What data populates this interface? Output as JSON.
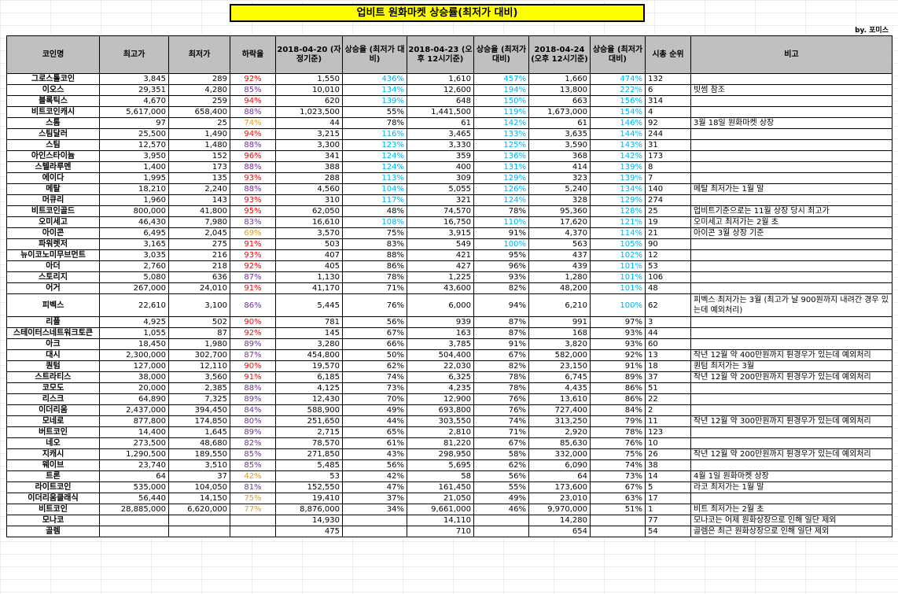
{
  "title": "업비트 원화마켓 상승률(최저가 대비)",
  "byline": "by. 포미스",
  "colors": {
    "red": "#ff0000",
    "purple": "#7030a0",
    "orange": "#e59a1a",
    "cyan": "#00b0f0",
    "black": "#000000"
  },
  "columns": [
    "코인명",
    "최고가",
    "최저가",
    "하락율",
    "2018-04-20 (자정기준)",
    "상승율 (최저가 대비)",
    "2018-04-23 (오후 12시기준)",
    "상승율 (최저가 대비)",
    "2018-04-24 (오후 12시기준)",
    "상승율 (최저가 대비)",
    "시총 순위",
    "비고"
  ],
  "rows": [
    {
      "name": "그로스톨코인",
      "high": "3,845",
      "low": "289",
      "drop": "92%",
      "dc": "red",
      "p0420": "1,550",
      "r0420": "436%",
      "c0420": "cyan",
      "p0423": "1,610",
      "r0423": "457%",
      "c0423": "cyan",
      "p0424": "1,660",
      "r0424": "474%",
      "c0424": "cyan",
      "rank": "132",
      "note": ""
    },
    {
      "name": "이오스",
      "high": "29,351",
      "low": "4,280",
      "drop": "85%",
      "dc": "purple",
      "p0420": "10,010",
      "r0420": "134%",
      "c0420": "cyan",
      "p0423": "12,600",
      "r0423": "194%",
      "c0423": "cyan",
      "p0424": "13,800",
      "r0424": "222%",
      "c0424": "cyan",
      "rank": "6",
      "note": "빗썸 참조"
    },
    {
      "name": "블록틱스",
      "high": "4,670",
      "low": "259",
      "drop": "94%",
      "dc": "red",
      "p0420": "620",
      "r0420": "139%",
      "c0420": "cyan",
      "p0423": "648",
      "r0423": "150%",
      "c0423": "cyan",
      "p0424": "663",
      "r0424": "156%",
      "c0424": "cyan",
      "rank": "314",
      "note": ""
    },
    {
      "name": "비트코인캐시",
      "high": "5,617,000",
      "low": "658,400",
      "drop": "88%",
      "dc": "purple",
      "p0420": "1,023,500",
      "r0420": "55%",
      "c0420": "black",
      "p0423": "1,441,500",
      "r0423": "119%",
      "c0423": "cyan",
      "p0424": "1,673,000",
      "r0424": "154%",
      "c0424": "cyan",
      "rank": "4",
      "note": ""
    },
    {
      "name": "스톰",
      "high": "97",
      "low": "25",
      "drop": "74%",
      "dc": "orange",
      "p0420": "44",
      "r0420": "78%",
      "c0420": "black",
      "p0423": "61",
      "r0423": "142%",
      "c0423": "cyan",
      "p0424": "61",
      "r0424": "146%",
      "c0424": "cyan",
      "rank": "92",
      "note": "3월 18일 원화마켓 상장"
    },
    {
      "name": "스팀달러",
      "high": "25,500",
      "low": "1,490",
      "drop": "94%",
      "dc": "red",
      "p0420": "3,215",
      "r0420": "116%",
      "c0420": "cyan",
      "p0423": "3,465",
      "r0423": "133%",
      "c0423": "cyan",
      "p0424": "3,635",
      "r0424": "144%",
      "c0424": "cyan",
      "rank": "244",
      "note": ""
    },
    {
      "name": "스팀",
      "high": "12,570",
      "low": "1,480",
      "drop": "88%",
      "dc": "purple",
      "p0420": "3,300",
      "r0420": "123%",
      "c0420": "cyan",
      "p0423": "3,330",
      "r0423": "125%",
      "c0423": "cyan",
      "p0424": "3,590",
      "r0424": "143%",
      "c0424": "cyan",
      "rank": "31",
      "note": ""
    },
    {
      "name": "아인스타이늄",
      "high": "3,950",
      "low": "152",
      "drop": "96%",
      "dc": "red",
      "p0420": "341",
      "r0420": "124%",
      "c0420": "cyan",
      "p0423": "359",
      "r0423": "136%",
      "c0423": "cyan",
      "p0424": "368",
      "r0424": "142%",
      "c0424": "cyan",
      "rank": "173",
      "note": ""
    },
    {
      "name": "스텔라루멘",
      "high": "1,400",
      "low": "173",
      "drop": "88%",
      "dc": "purple",
      "p0420": "388",
      "r0420": "124%",
      "c0420": "cyan",
      "p0423": "400",
      "r0423": "131%",
      "c0423": "cyan",
      "p0424": "414",
      "r0424": "139%",
      "c0424": "cyan",
      "rank": "8",
      "note": ""
    },
    {
      "name": "에이다",
      "high": "1,995",
      "low": "135",
      "drop": "93%",
      "dc": "red",
      "p0420": "288",
      "r0420": "113%",
      "c0420": "cyan",
      "p0423": "309",
      "r0423": "129%",
      "c0423": "cyan",
      "p0424": "323",
      "r0424": "139%",
      "c0424": "cyan",
      "rank": "7",
      "note": ""
    },
    {
      "name": "메탈",
      "high": "18,210",
      "low": "2,240",
      "drop": "88%",
      "dc": "purple",
      "p0420": "4,560",
      "r0420": "104%",
      "c0420": "cyan",
      "p0423": "5,055",
      "r0423": "126%",
      "c0423": "cyan",
      "p0424": "5,240",
      "r0424": "134%",
      "c0424": "cyan",
      "rank": "140",
      "note": "메탈 최저가는 1월 말"
    },
    {
      "name": "머큐리",
      "high": "1,960",
      "low": "143",
      "drop": "93%",
      "dc": "red",
      "p0420": "310",
      "r0420": "117%",
      "c0420": "cyan",
      "p0423": "321",
      "r0423": "124%",
      "c0423": "cyan",
      "p0424": "328",
      "r0424": "129%",
      "c0424": "cyan",
      "rank": "274",
      "note": ""
    },
    {
      "name": "비트코인골드",
      "high": "800,000",
      "low": "41,800",
      "drop": "95%",
      "dc": "red",
      "p0420": "62,050",
      "r0420": "48%",
      "c0420": "black",
      "p0423": "74,570",
      "r0423": "78%",
      "c0423": "black",
      "p0424": "95,360",
      "r0424": "128%",
      "c0424": "cyan",
      "rank": "25",
      "note": "업비트기준으로는 11월 상장 당시 최고가"
    },
    {
      "name": "오미세고",
      "high": "46,430",
      "low": "7,980",
      "drop": "83%",
      "dc": "purple",
      "p0420": "16,610",
      "r0420": "108%",
      "c0420": "cyan",
      "p0423": "16,750",
      "r0423": "110%",
      "c0423": "cyan",
      "p0424": "17,620",
      "r0424": "121%",
      "c0424": "cyan",
      "rank": "19",
      "note": "오미세고 최저가는 2월 초"
    },
    {
      "name": "아이콘",
      "high": "6,495",
      "low": "2,045",
      "drop": "69%",
      "dc": "orange",
      "p0420": "3,570",
      "r0420": "75%",
      "c0420": "black",
      "p0423": "3,915",
      "r0423": "91%",
      "c0423": "black",
      "p0424": "4,370",
      "r0424": "114%",
      "c0424": "cyan",
      "rank": "21",
      "note": "아이콘 3월 상장 기준"
    },
    {
      "name": "파워렛저",
      "high": "3,165",
      "low": "275",
      "drop": "91%",
      "dc": "red",
      "p0420": "503",
      "r0420": "83%",
      "c0420": "black",
      "p0423": "549",
      "r0423": "100%",
      "c0423": "cyan",
      "p0424": "563",
      "r0424": "105%",
      "c0424": "cyan",
      "rank": "90",
      "note": ""
    },
    {
      "name": "뉴이코노미무브먼트",
      "high": "3,035",
      "low": "216",
      "drop": "93%",
      "dc": "red",
      "p0420": "407",
      "r0420": "88%",
      "c0420": "black",
      "p0423": "421",
      "r0423": "95%",
      "c0423": "black",
      "p0424": "437",
      "r0424": "102%",
      "c0424": "cyan",
      "rank": "12",
      "note": ""
    },
    {
      "name": "아더",
      "high": "2,760",
      "low": "218",
      "drop": "92%",
      "dc": "red",
      "p0420": "405",
      "r0420": "86%",
      "c0420": "black",
      "p0423": "427",
      "r0423": "96%",
      "c0423": "black",
      "p0424": "439",
      "r0424": "101%",
      "c0424": "cyan",
      "rank": "53",
      "note": ""
    },
    {
      "name": "스토리지",
      "high": "5,080",
      "low": "636",
      "drop": "87%",
      "dc": "purple",
      "p0420": "1,130",
      "r0420": "78%",
      "c0420": "black",
      "p0423": "1,225",
      "r0423": "93%",
      "c0423": "black",
      "p0424": "1,280",
      "r0424": "101%",
      "c0424": "cyan",
      "rank": "106",
      "note": ""
    },
    {
      "name": "어거",
      "high": "267,000",
      "low": "24,010",
      "drop": "91%",
      "dc": "red",
      "p0420": "41,170",
      "r0420": "71%",
      "c0420": "black",
      "p0423": "43,600",
      "r0423": "82%",
      "c0423": "black",
      "p0424": "48,200",
      "r0424": "101%",
      "c0424": "cyan",
      "rank": "48",
      "note": ""
    },
    {
      "name": "피벡스",
      "high": "22,610",
      "low": "3,100",
      "drop": "86%",
      "dc": "purple",
      "p0420": "5,445",
      "r0420": "76%",
      "c0420": "black",
      "p0423": "6,000",
      "r0423": "94%",
      "c0423": "black",
      "p0424": "6,210",
      "r0424": "100%",
      "c0424": "cyan",
      "rank": "62",
      "note": "피벡스 최저가는 3월 (최고가 날 900원까지 내려간 경우 있는데 예외처리)",
      "tall": true
    },
    {
      "name": "리플",
      "high": "4,925",
      "low": "502",
      "drop": "90%",
      "dc": "red",
      "p0420": "781",
      "r0420": "56%",
      "c0420": "black",
      "p0423": "939",
      "r0423": "87%",
      "c0423": "black",
      "p0424": "991",
      "r0424": "97%",
      "c0424": "black",
      "rank": "3",
      "note": ""
    },
    {
      "name": "스테이터스네트워크토큰",
      "high": "1,055",
      "low": "87",
      "drop": "92%",
      "dc": "red",
      "p0420": "145",
      "r0420": "67%",
      "c0420": "black",
      "p0423": "163",
      "r0423": "87%",
      "c0423": "black",
      "p0424": "168",
      "r0424": "93%",
      "c0424": "black",
      "rank": "44",
      "note": ""
    },
    {
      "name": "아크",
      "high": "18,450",
      "low": "1,980",
      "drop": "89%",
      "dc": "purple",
      "p0420": "3,280",
      "r0420": "66%",
      "c0420": "black",
      "p0423": "3,785",
      "r0423": "91%",
      "c0423": "black",
      "p0424": "3,820",
      "r0424": "93%",
      "c0424": "black",
      "rank": "60",
      "note": ""
    },
    {
      "name": "대시",
      "high": "2,300,000",
      "low": "302,700",
      "drop": "87%",
      "dc": "purple",
      "p0420": "454,800",
      "r0420": "50%",
      "c0420": "black",
      "p0423": "504,400",
      "r0423": "67%",
      "c0423": "black",
      "p0424": "582,000",
      "r0424": "92%",
      "c0424": "black",
      "rank": "13",
      "note": "작년 12월 약 400만원까지 튄경우가 있는데 예외처리"
    },
    {
      "name": "퀀텀",
      "high": "127,000",
      "low": "12,110",
      "drop": "90%",
      "dc": "red",
      "p0420": "19,570",
      "r0420": "62%",
      "c0420": "black",
      "p0423": "22,030",
      "r0423": "82%",
      "c0423": "black",
      "p0424": "23,150",
      "r0424": "91%",
      "c0424": "black",
      "rank": "18",
      "note": "퀀텀 최저가는 3월"
    },
    {
      "name": "스트라티스",
      "high": "38,000",
      "low": "3,560",
      "drop": "91%",
      "dc": "red",
      "p0420": "6,185",
      "r0420": "74%",
      "c0420": "black",
      "p0423": "6,325",
      "r0423": "78%",
      "c0423": "black",
      "p0424": "6,745",
      "r0424": "89%",
      "c0424": "black",
      "rank": "37",
      "note": "작년 12월 약 200만원까지 튄경우가 있는데 예외처리"
    },
    {
      "name": "코모도",
      "high": "20,000",
      "low": "2,385",
      "drop": "88%",
      "dc": "purple",
      "p0420": "4,125",
      "r0420": "73%",
      "c0420": "black",
      "p0423": "4,235",
      "r0423": "78%",
      "c0423": "black",
      "p0424": "4,435",
      "r0424": "86%",
      "c0424": "black",
      "rank": "51",
      "note": ""
    },
    {
      "name": "리스크",
      "high": "64,890",
      "low": "7,325",
      "drop": "89%",
      "dc": "purple",
      "p0420": "12,430",
      "r0420": "70%",
      "c0420": "black",
      "p0423": "12,900",
      "r0423": "76%",
      "c0423": "black",
      "p0424": "13,610",
      "r0424": "86%",
      "c0424": "black",
      "rank": "22",
      "note": ""
    },
    {
      "name": "이더리움",
      "high": "2,437,000",
      "low": "394,450",
      "drop": "84%",
      "dc": "purple",
      "p0420": "588,900",
      "r0420": "49%",
      "c0420": "black",
      "p0423": "693,800",
      "r0423": "76%",
      "c0423": "black",
      "p0424": "727,400",
      "r0424": "84%",
      "c0424": "black",
      "rank": "2",
      "note": ""
    },
    {
      "name": "모네로",
      "high": "877,800",
      "low": "174,850",
      "drop": "80%",
      "dc": "purple",
      "p0420": "251,650",
      "r0420": "44%",
      "c0420": "black",
      "p0423": "303,550",
      "r0423": "74%",
      "c0423": "black",
      "p0424": "313,250",
      "r0424": "79%",
      "c0424": "black",
      "rank": "11",
      "note": "작년 12월 약 300만원까지 튄경우가 있는데 예외처리"
    },
    {
      "name": "버트코인",
      "high": "14,400",
      "low": "1,645",
      "drop": "89%",
      "dc": "purple",
      "p0420": "2,715",
      "r0420": "65%",
      "c0420": "black",
      "p0423": "2,810",
      "r0423": "71%",
      "c0423": "black",
      "p0424": "2,920",
      "r0424": "78%",
      "c0424": "black",
      "rank": "123",
      "note": ""
    },
    {
      "name": "네오",
      "high": "273,500",
      "low": "48,680",
      "drop": "82%",
      "dc": "purple",
      "p0420": "78,570",
      "r0420": "61%",
      "c0420": "black",
      "p0423": "81,220",
      "r0423": "67%",
      "c0423": "black",
      "p0424": "85,630",
      "r0424": "76%",
      "c0424": "black",
      "rank": "10",
      "note": ""
    },
    {
      "name": "지캐시",
      "high": "1,290,500",
      "low": "189,550",
      "drop": "85%",
      "dc": "purple",
      "p0420": "271,850",
      "r0420": "43%",
      "c0420": "black",
      "p0423": "298,950",
      "r0423": "58%",
      "c0423": "black",
      "p0424": "332,000",
      "r0424": "75%",
      "c0424": "black",
      "rank": "26",
      "note": "작년 12월 약 200만원까지 튄경우가 있는데 예외처리"
    },
    {
      "name": "웨이브",
      "high": "23,740",
      "low": "3,510",
      "drop": "85%",
      "dc": "purple",
      "p0420": "5,485",
      "r0420": "56%",
      "c0420": "black",
      "p0423": "5,695",
      "r0423": "62%",
      "c0423": "black",
      "p0424": "6,090",
      "r0424": "74%",
      "c0424": "black",
      "rank": "38",
      "note": ""
    },
    {
      "name": "트론",
      "high": "64",
      "low": "37",
      "drop": "42%",
      "dc": "orange",
      "p0420": "53",
      "r0420": "42%",
      "c0420": "black",
      "p0423": "58",
      "r0423": "56%",
      "c0423": "black",
      "p0424": "64",
      "r0424": "73%",
      "c0424": "black",
      "rank": "14",
      "note": "4월 1일 원화마켓 상장"
    },
    {
      "name": "라이트코인",
      "high": "535,000",
      "low": "104,050",
      "drop": "81%",
      "dc": "purple",
      "p0420": "152,550",
      "r0420": "47%",
      "c0420": "black",
      "p0423": "161,450",
      "r0423": "55%",
      "c0423": "black",
      "p0424": "173,600",
      "r0424": "67%",
      "c0424": "black",
      "rank": "5",
      "note": "라코 최저가는 1월 말"
    },
    {
      "name": "이더리움클래식",
      "high": "56,440",
      "low": "14,150",
      "drop": "75%",
      "dc": "orange",
      "p0420": "19,410",
      "r0420": "37%",
      "c0420": "black",
      "p0423": "21,050",
      "r0423": "49%",
      "c0423": "black",
      "p0424": "23,010",
      "r0424": "63%",
      "c0424": "black",
      "rank": "17",
      "note": ""
    },
    {
      "name": "비트코인",
      "high": "28,885,000",
      "low": "6,620,000",
      "drop": "77%",
      "dc": "orange",
      "p0420": "8,876,000",
      "r0420": "34%",
      "c0420": "black",
      "p0423": "9,661,000",
      "r0423": "46%",
      "c0423": "black",
      "p0424": "9,970,000",
      "r0424": "51%",
      "c0424": "black",
      "rank": "1",
      "note": "비트 최저가는 2월 초"
    },
    {
      "name": "모나코",
      "high": "",
      "low": "",
      "drop": "",
      "dc": "black",
      "p0420": "14,930",
      "r0420": "",
      "c0420": "black",
      "p0423": "14,110",
      "r0423": "",
      "c0423": "black",
      "p0424": "14,280",
      "r0424": "",
      "c0424": "black",
      "rank": "77",
      "note": "모나코는 어제 원화상장으로 인해 일단 제외"
    },
    {
      "name": "골렘",
      "high": "",
      "low": "",
      "drop": "",
      "dc": "black",
      "p0420": "475",
      "r0420": "",
      "c0420": "black",
      "p0423": "710",
      "r0423": "",
      "c0423": "black",
      "p0424": "654",
      "r0424": "",
      "c0424": "black",
      "rank": "54",
      "note": "골렘은 최근 원화상장으로 인해 일단 제외"
    }
  ]
}
